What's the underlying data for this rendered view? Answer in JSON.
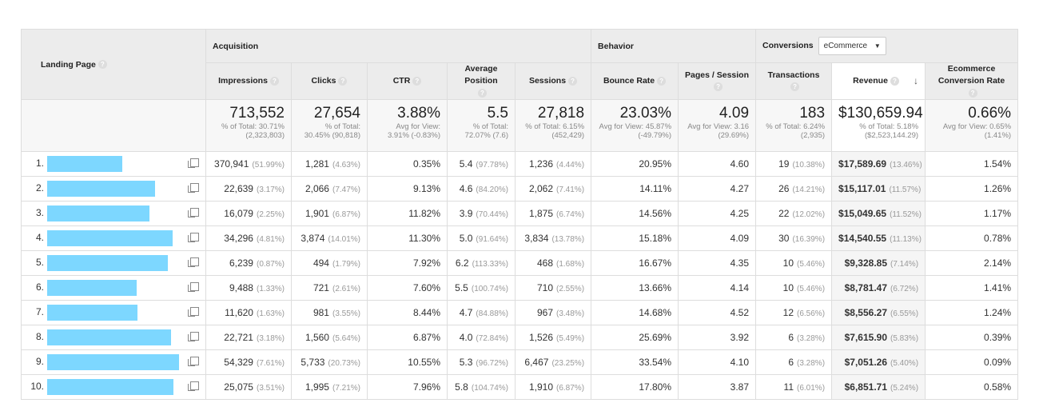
{
  "header": {
    "landing_page": "Landing Page",
    "groups": {
      "acquisition": "Acquisition",
      "behavior": "Behavior",
      "conversions": "Conversions",
      "conversions_select": "eCommerce"
    },
    "columns": [
      "Impressions",
      "Clicks",
      "CTR",
      "Average Position",
      "Sessions",
      "Bounce Rate",
      "Pages / Session",
      "Transactions",
      "Revenue",
      "Ecommerce Conversion Rate"
    ],
    "sorted_column": "Revenue",
    "help_icon": "?"
  },
  "totals": [
    {
      "value": "713,552",
      "sub": "% of Total: 30.71% (2,323,803)"
    },
    {
      "value": "27,654",
      "sub": "% of Total: 30.45% (90,818)"
    },
    {
      "value": "3.88%",
      "sub": "Avg for View: 3.91% (-0.83%)"
    },
    {
      "value": "5.5",
      "sub": "% of Total: 72.07% (7.6)"
    },
    {
      "value": "27,818",
      "sub": "% of Total: 6.15% (452,429)"
    },
    {
      "value": "23.03%",
      "sub": "Avg for View: 45.87% (-49.79%)"
    },
    {
      "value": "4.09",
      "sub": "Avg for View: 3.16 (29.69%)"
    },
    {
      "value": "183",
      "sub": "% of Total: 6.24% (2,935)"
    },
    {
      "value": "$130,659.94",
      "sub": "% of Total: 5.18% ($2,523,144.29)"
    },
    {
      "value": "0.66%",
      "sub": "Avg for View: 0.65% (1.41%)"
    }
  ],
  "rows": [
    {
      "index": "1.",
      "cells": [
        [
          "370,941",
          "(51.99%)"
        ],
        [
          "1,281",
          "(4.63%)"
        ],
        [
          "0.35%",
          ""
        ],
        [
          "5.4",
          "(97.78%)"
        ],
        [
          "1,236",
          "(4.44%)"
        ],
        [
          "20.95%",
          ""
        ],
        [
          "4.60",
          ""
        ],
        [
          "19",
          "(10.38%)"
        ],
        [
          "$17,589.69",
          "(13.46%)"
        ],
        [
          "1.54%",
          ""
        ]
      ]
    },
    {
      "index": "2.",
      "cells": [
        [
          "22,639",
          "(3.17%)"
        ],
        [
          "2,066",
          "(7.47%)"
        ],
        [
          "9.13%",
          ""
        ],
        [
          "4.6",
          "(84.20%)"
        ],
        [
          "2,062",
          "(7.41%)"
        ],
        [
          "14.11%",
          ""
        ],
        [
          "4.27",
          ""
        ],
        [
          "26",
          "(14.21%)"
        ],
        [
          "$15,117.01",
          "(11.57%)"
        ],
        [
          "1.26%",
          ""
        ]
      ]
    },
    {
      "index": "3.",
      "cells": [
        [
          "16,079",
          "(2.25%)"
        ],
        [
          "1,901",
          "(6.87%)"
        ],
        [
          "11.82%",
          ""
        ],
        [
          "3.9",
          "(70.44%)"
        ],
        [
          "1,875",
          "(6.74%)"
        ],
        [
          "14.56%",
          ""
        ],
        [
          "4.25",
          ""
        ],
        [
          "22",
          "(12.02%)"
        ],
        [
          "$15,049.65",
          "(11.52%)"
        ],
        [
          "1.17%",
          ""
        ]
      ]
    },
    {
      "index": "4.",
      "cells": [
        [
          "34,296",
          "(4.81%)"
        ],
        [
          "3,874",
          "(14.01%)"
        ],
        [
          "11.30%",
          ""
        ],
        [
          "5.0",
          "(91.64%)"
        ],
        [
          "3,834",
          "(13.78%)"
        ],
        [
          "15.18%",
          ""
        ],
        [
          "4.09",
          ""
        ],
        [
          "30",
          "(16.39%)"
        ],
        [
          "$14,540.55",
          "(11.13%)"
        ],
        [
          "0.78%",
          ""
        ]
      ]
    },
    {
      "index": "5.",
      "cells": [
        [
          "6,239",
          "(0.87%)"
        ],
        [
          "494",
          "(1.79%)"
        ],
        [
          "7.92%",
          ""
        ],
        [
          "6.2",
          "(113.33%)"
        ],
        [
          "468",
          "(1.68%)"
        ],
        [
          "16.67%",
          ""
        ],
        [
          "4.35",
          ""
        ],
        [
          "10",
          "(5.46%)"
        ],
        [
          "$9,328.85",
          "(7.14%)"
        ],
        [
          "2.14%",
          ""
        ]
      ]
    },
    {
      "index": "6.",
      "cells": [
        [
          "9,488",
          "(1.33%)"
        ],
        [
          "721",
          "(2.61%)"
        ],
        [
          "7.60%",
          ""
        ],
        [
          "5.5",
          "(100.74%)"
        ],
        [
          "710",
          "(2.55%)"
        ],
        [
          "13.66%",
          ""
        ],
        [
          "4.14",
          ""
        ],
        [
          "10",
          "(5.46%)"
        ],
        [
          "$8,781.47",
          "(6.72%)"
        ],
        [
          "1.41%",
          ""
        ]
      ]
    },
    {
      "index": "7.",
      "cells": [
        [
          "11,620",
          "(1.63%)"
        ],
        [
          "981",
          "(3.55%)"
        ],
        [
          "8.44%",
          ""
        ],
        [
          "4.7",
          "(84.88%)"
        ],
        [
          "967",
          "(3.48%)"
        ],
        [
          "14.68%",
          ""
        ],
        [
          "4.52",
          ""
        ],
        [
          "12",
          "(6.56%)"
        ],
        [
          "$8,556.27",
          "(6.55%)"
        ],
        [
          "1.24%",
          ""
        ]
      ]
    },
    {
      "index": "8.",
      "cells": [
        [
          "22,721",
          "(3.18%)"
        ],
        [
          "1,560",
          "(5.64%)"
        ],
        [
          "6.87%",
          ""
        ],
        [
          "4.0",
          "(72.84%)"
        ],
        [
          "1,526",
          "(5.49%)"
        ],
        [
          "25.69%",
          ""
        ],
        [
          "3.92",
          ""
        ],
        [
          "6",
          "(3.28%)"
        ],
        [
          "$7,615.90",
          "(5.83%)"
        ],
        [
          "0.39%",
          ""
        ]
      ]
    },
    {
      "index": "9.",
      "cells": [
        [
          "54,329",
          "(7.61%)"
        ],
        [
          "5,733",
          "(20.73%)"
        ],
        [
          "10.55%",
          ""
        ],
        [
          "5.3",
          "(96.72%)"
        ],
        [
          "6,467",
          "(23.25%)"
        ],
        [
          "33.54%",
          ""
        ],
        [
          "4.10",
          ""
        ],
        [
          "6",
          "(3.28%)"
        ],
        [
          "$7,051.26",
          "(5.40%)"
        ],
        [
          "0.09%",
          ""
        ]
      ]
    },
    {
      "index": "10.",
      "cells": [
        [
          "25,075",
          "(3.51%)"
        ],
        [
          "1,995",
          "(7.21%)"
        ],
        [
          "7.96%",
          ""
        ],
        [
          "5.8",
          "(104.74%)"
        ],
        [
          "1,910",
          "(6.87%)"
        ],
        [
          "17.80%",
          ""
        ],
        [
          "3.87",
          ""
        ],
        [
          "11",
          "(6.01%)"
        ],
        [
          "$6,851.71",
          "(5.24%)"
        ],
        [
          "0.58%",
          ""
        ]
      ]
    }
  ],
  "colors": {
    "redaction": "#7dd7ff",
    "header_bg": "#ececec",
    "sorted_col_bg": "#f5f5f5"
  }
}
